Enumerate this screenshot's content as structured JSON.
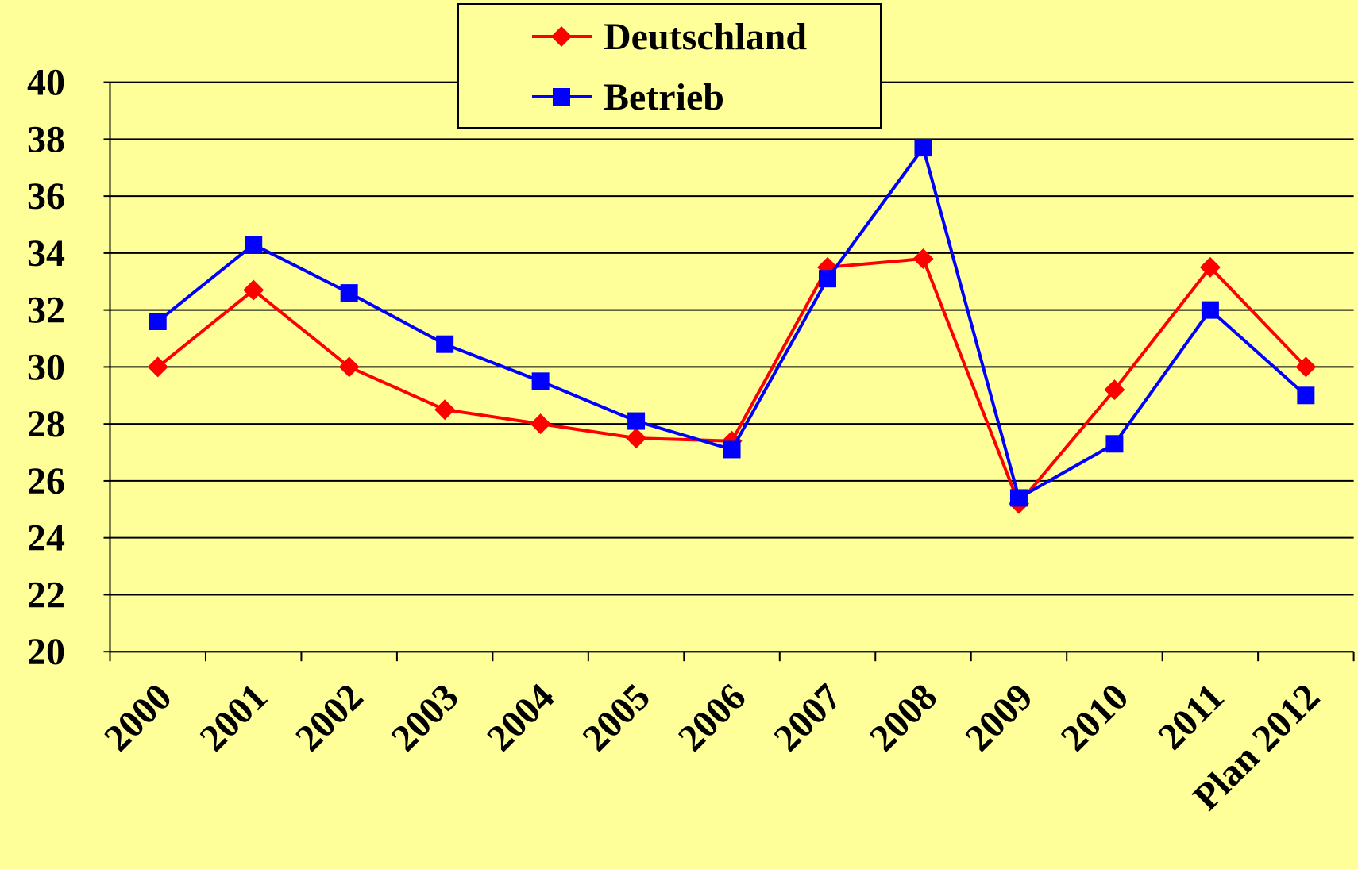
{
  "chart_data": {
    "type": "line",
    "categories": [
      "2000",
      "2001",
      "2002",
      "2003",
      "2004",
      "2005",
      "2006",
      "2007",
      "2008",
      "2009",
      "2010",
      "2011",
      "Plan 2012"
    ],
    "series": [
      {
        "name": "Deutschland",
        "color": "#ff0000",
        "marker": "diamond",
        "values": [
          30.0,
          32.7,
          30.0,
          28.5,
          28.0,
          27.5,
          27.4,
          33.5,
          33.8,
          25.2,
          29.2,
          33.5,
          30.0
        ]
      },
      {
        "name": "Betrieb",
        "color": "#0000ff",
        "marker": "square",
        "values": [
          31.6,
          34.3,
          32.6,
          30.8,
          29.5,
          28.1,
          27.1,
          33.1,
          37.7,
          25.4,
          27.3,
          32.0,
          29.0
        ]
      }
    ],
    "ylim": [
      20,
      40
    ],
    "yticks": [
      20,
      22,
      24,
      26,
      28,
      30,
      32,
      34,
      36,
      38,
      40
    ],
    "grid": true
  }
}
